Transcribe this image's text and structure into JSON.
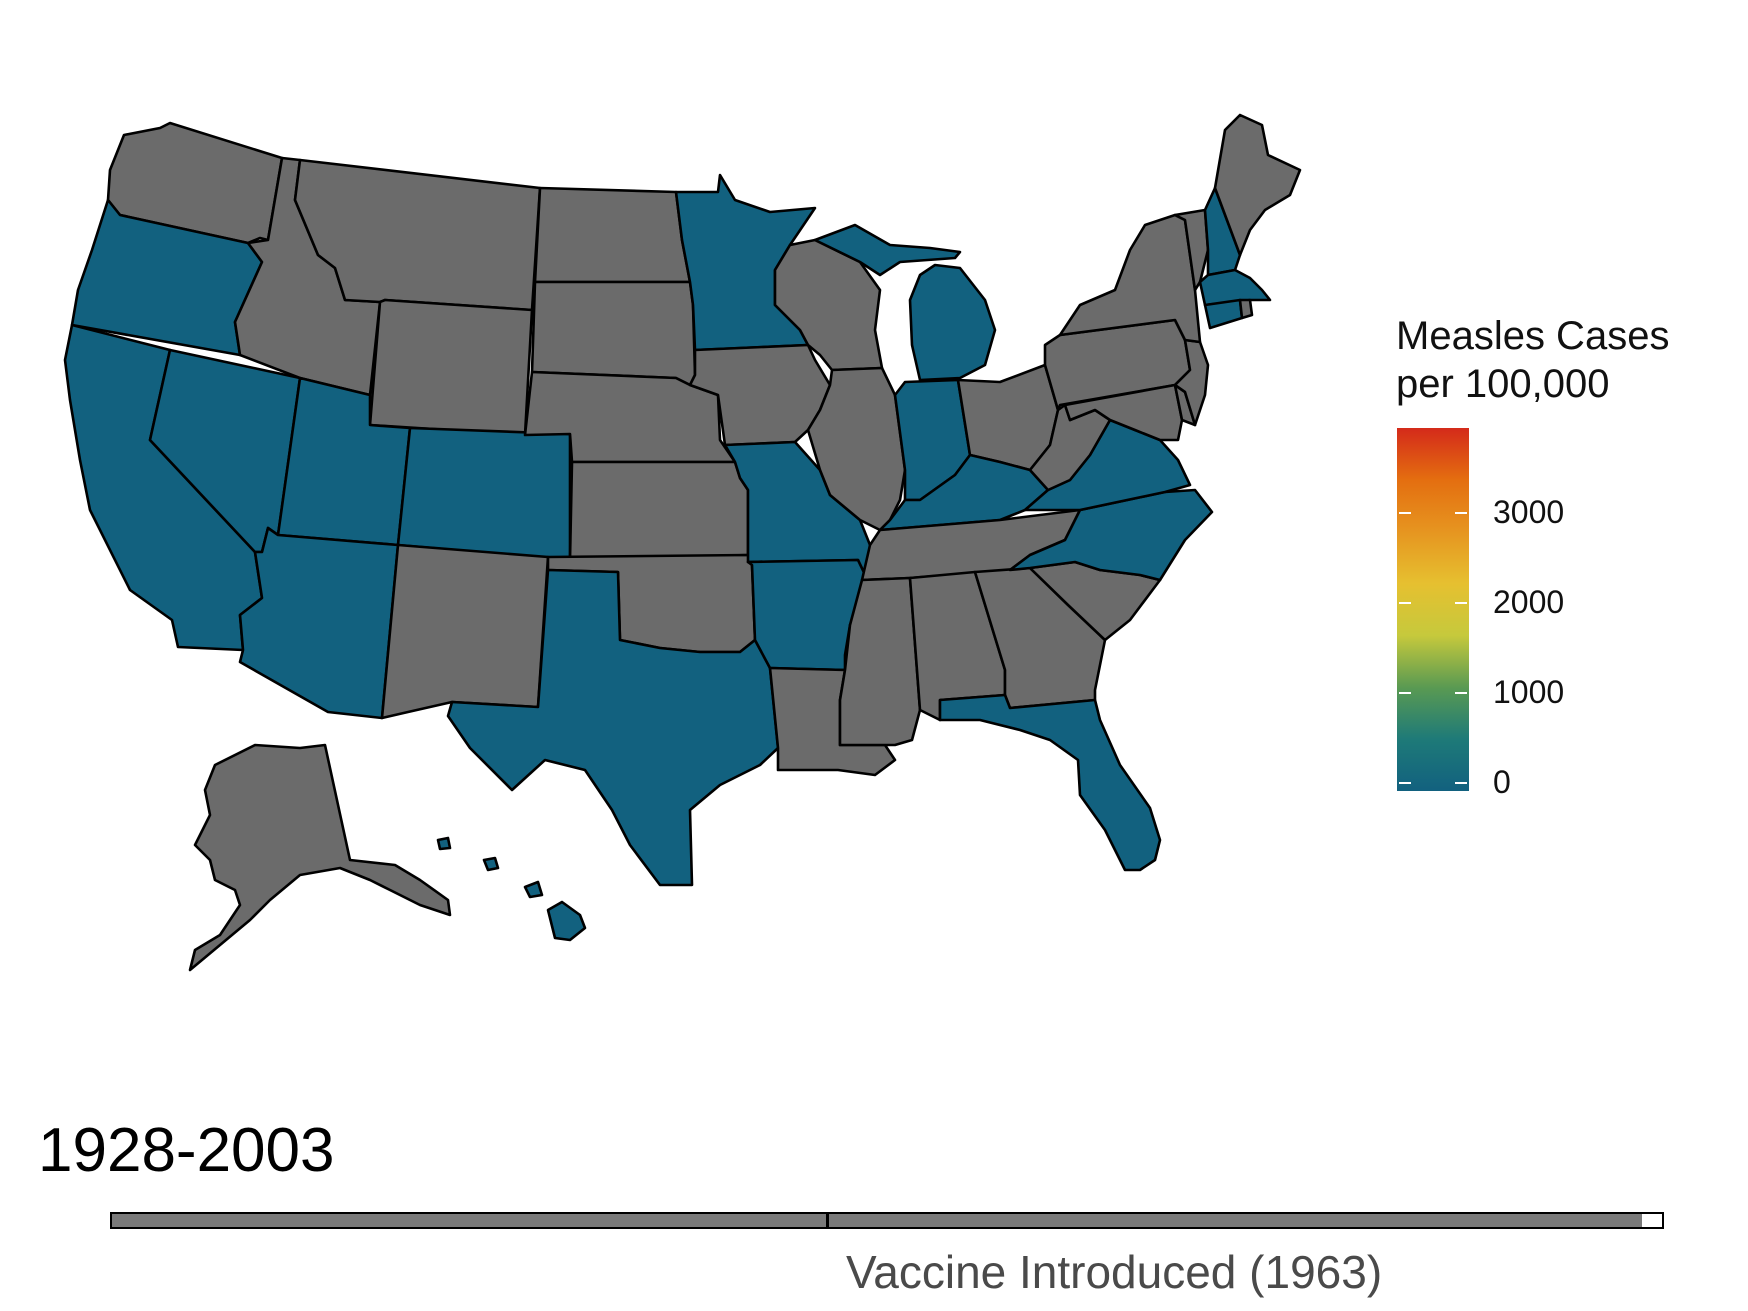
{
  "legend": {
    "title": "Measles Cases\nper 100,000",
    "ticks": [
      "3000",
      "2000",
      "1000",
      "0"
    ],
    "tick_values": [
      3000,
      2000,
      1000,
      0
    ],
    "max_value": 3850,
    "gradient_stops": [
      "#12617f",
      "#1e7a78",
      "#5a9a52",
      "#c6c93c",
      "#e6c030",
      "#e69520",
      "#e46e10",
      "#d42a1a"
    ]
  },
  "year_range": "1928-2003",
  "timeline": {
    "start_year": 1928,
    "end_year": 2004,
    "current_year": 2003,
    "marker_year": 1963,
    "marker_label": "Vaccine Introduced (1963)"
  },
  "colors": {
    "low_rate": "#12617f",
    "no_data": "#6b6b6b"
  },
  "map": {
    "low_rate_states": [
      "Oregon",
      "California",
      "Nevada",
      "Utah",
      "Colorado",
      "Arizona",
      "Texas",
      "Minnesota",
      "Missouri",
      "Arkansas",
      "Michigan",
      "Indiana",
      "Kentucky",
      "Virginia",
      "North Carolina",
      "Florida",
      "New Hampshire",
      "Massachusetts",
      "Connecticut",
      "Hawaii"
    ],
    "no_data_states": [
      "Washington",
      "Idaho",
      "Montana",
      "Wyoming",
      "North Dakota",
      "South Dakota",
      "Nebraska",
      "Kansas",
      "Oklahoma",
      "New Mexico",
      "Iowa",
      "Wisconsin",
      "Illinois",
      "Ohio",
      "West Virginia",
      "Pennsylvania",
      "New York",
      "Vermont",
      "Maine",
      "New Jersey",
      "Delaware",
      "Maryland",
      "Tennessee",
      "Mississippi",
      "Alabama",
      "Georgia",
      "South Carolina",
      "Louisiana",
      "Alaska",
      "Rhode Island"
    ]
  }
}
